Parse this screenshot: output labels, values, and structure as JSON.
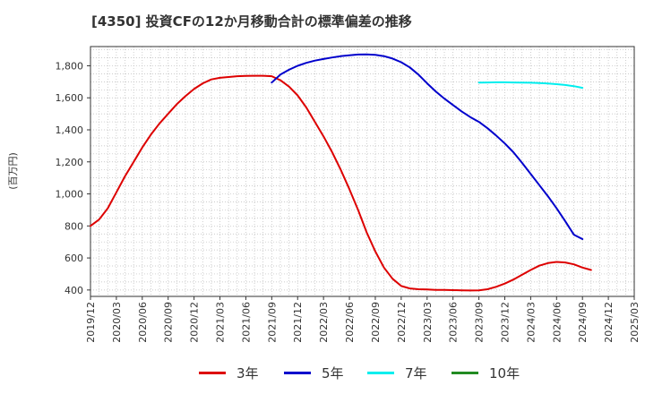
{
  "chart_data": {
    "type": "line",
    "title": "[4350]  投資CFの12か月移動合計の標準偏差の推移",
    "ylabel": "(百万円)",
    "ylim": [
      360,
      1920
    ],
    "yticks": [
      400,
      600,
      800,
      1000,
      1200,
      1400,
      1600,
      1800
    ],
    "ytick_labels": [
      "400",
      "600",
      "800",
      "1,000",
      "1,200",
      "1,400",
      "1,600",
      "1,800"
    ],
    "xticks": [
      "2019/12",
      "2020/03",
      "2020/06",
      "2020/09",
      "2020/12",
      "2021/03",
      "2021/06",
      "2021/09",
      "2021/12",
      "2022/03",
      "2022/06",
      "2022/09",
      "2022/12",
      "2023/03",
      "2023/06",
      "2023/09",
      "2023/12",
      "2024/03",
      "2024/06",
      "2024/09",
      "2024/12",
      "2025/03"
    ],
    "grid": true,
    "legend_position": "bottom",
    "series": [
      {
        "name": "3年",
        "color": "#dd0000",
        "points": [
          [
            "2019/12",
            800
          ],
          [
            "2020/01",
            840
          ],
          [
            "2020/02",
            910
          ],
          [
            "2020/03",
            1010
          ],
          [
            "2020/04",
            1110
          ],
          [
            "2020/05",
            1200
          ],
          [
            "2020/06",
            1290
          ],
          [
            "2020/07",
            1370
          ],
          [
            "2020/08",
            1440
          ],
          [
            "2020/09",
            1500
          ],
          [
            "2020/10",
            1560
          ],
          [
            "2020/11",
            1610
          ],
          [
            "2020/12",
            1655
          ],
          [
            "2021/01",
            1690
          ],
          [
            "2021/02",
            1715
          ],
          [
            "2021/03",
            1725
          ],
          [
            "2021/04",
            1730
          ],
          [
            "2021/05",
            1735
          ],
          [
            "2021/06",
            1737
          ],
          [
            "2021/07",
            1738
          ],
          [
            "2021/08",
            1738
          ],
          [
            "2021/09",
            1735
          ],
          [
            "2021/10",
            1710
          ],
          [
            "2021/11",
            1670
          ],
          [
            "2021/12",
            1615
          ],
          [
            "2022/01",
            1540
          ],
          [
            "2022/02",
            1450
          ],
          [
            "2022/03",
            1360
          ],
          [
            "2022/04",
            1260
          ],
          [
            "2022/05",
            1150
          ],
          [
            "2022/06",
            1030
          ],
          [
            "2022/07",
            900
          ],
          [
            "2022/08",
            760
          ],
          [
            "2022/09",
            640
          ],
          [
            "2022/10",
            540
          ],
          [
            "2022/11",
            470
          ],
          [
            "2022/12",
            425
          ],
          [
            "2023/01",
            410
          ],
          [
            "2023/02",
            405
          ],
          [
            "2023/03",
            403
          ],
          [
            "2023/04",
            401
          ],
          [
            "2023/05",
            400
          ],
          [
            "2023/06",
            399
          ],
          [
            "2023/07",
            398
          ],
          [
            "2023/08",
            397
          ],
          [
            "2023/09",
            398
          ],
          [
            "2023/10",
            405
          ],
          [
            "2023/11",
            420
          ],
          [
            "2023/12",
            440
          ],
          [
            "2024/01",
            465
          ],
          [
            "2024/02",
            495
          ],
          [
            "2024/03",
            525
          ],
          [
            "2024/04",
            552
          ],
          [
            "2024/05",
            568
          ],
          [
            "2024/06",
            575
          ],
          [
            "2024/07",
            572
          ],
          [
            "2024/08",
            560
          ],
          [
            "2024/09",
            540
          ],
          [
            "2024/10",
            525
          ]
        ]
      },
      {
        "name": "5年",
        "color": "#0000cc",
        "points": [
          [
            "2021/09",
            1695
          ],
          [
            "2021/10",
            1745
          ],
          [
            "2021/11",
            1775
          ],
          [
            "2021/12",
            1800
          ],
          [
            "2022/01",
            1818
          ],
          [
            "2022/02",
            1832
          ],
          [
            "2022/03",
            1842
          ],
          [
            "2022/04",
            1852
          ],
          [
            "2022/05",
            1860
          ],
          [
            "2022/06",
            1866
          ],
          [
            "2022/07",
            1870
          ],
          [
            "2022/08",
            1871
          ],
          [
            "2022/09",
            1868
          ],
          [
            "2022/10",
            1860
          ],
          [
            "2022/11",
            1845
          ],
          [
            "2022/12",
            1822
          ],
          [
            "2023/01",
            1790
          ],
          [
            "2023/02",
            1745
          ],
          [
            "2023/03",
            1690
          ],
          [
            "2023/04",
            1640
          ],
          [
            "2023/05",
            1595
          ],
          [
            "2023/06",
            1555
          ],
          [
            "2023/07",
            1515
          ],
          [
            "2023/08",
            1480
          ],
          [
            "2023/09",
            1450
          ],
          [
            "2023/10",
            1410
          ],
          [
            "2023/11",
            1365
          ],
          [
            "2023/12",
            1315
          ],
          [
            "2024/01",
            1260
          ],
          [
            "2024/02",
            1195
          ],
          [
            "2024/03",
            1125
          ],
          [
            "2024/04",
            1055
          ],
          [
            "2024/05",
            985
          ],
          [
            "2024/06",
            910
          ],
          [
            "2024/07",
            830
          ],
          [
            "2024/08",
            745
          ],
          [
            "2024/09",
            718
          ]
        ]
      },
      {
        "name": "7年",
        "color": "#00eeee",
        "points": [
          [
            "2023/09",
            1695
          ],
          [
            "2023/10",
            1696
          ],
          [
            "2023/11",
            1697
          ],
          [
            "2023/12",
            1697
          ],
          [
            "2024/01",
            1696
          ],
          [
            "2024/02",
            1695
          ],
          [
            "2024/03",
            1694
          ],
          [
            "2024/04",
            1692
          ],
          [
            "2024/05",
            1689
          ],
          [
            "2024/06",
            1685
          ],
          [
            "2024/07",
            1680
          ],
          [
            "2024/08",
            1673
          ],
          [
            "2024/09",
            1662
          ]
        ]
      },
      {
        "name": "10年",
        "color": "#228b22",
        "points": []
      }
    ]
  }
}
